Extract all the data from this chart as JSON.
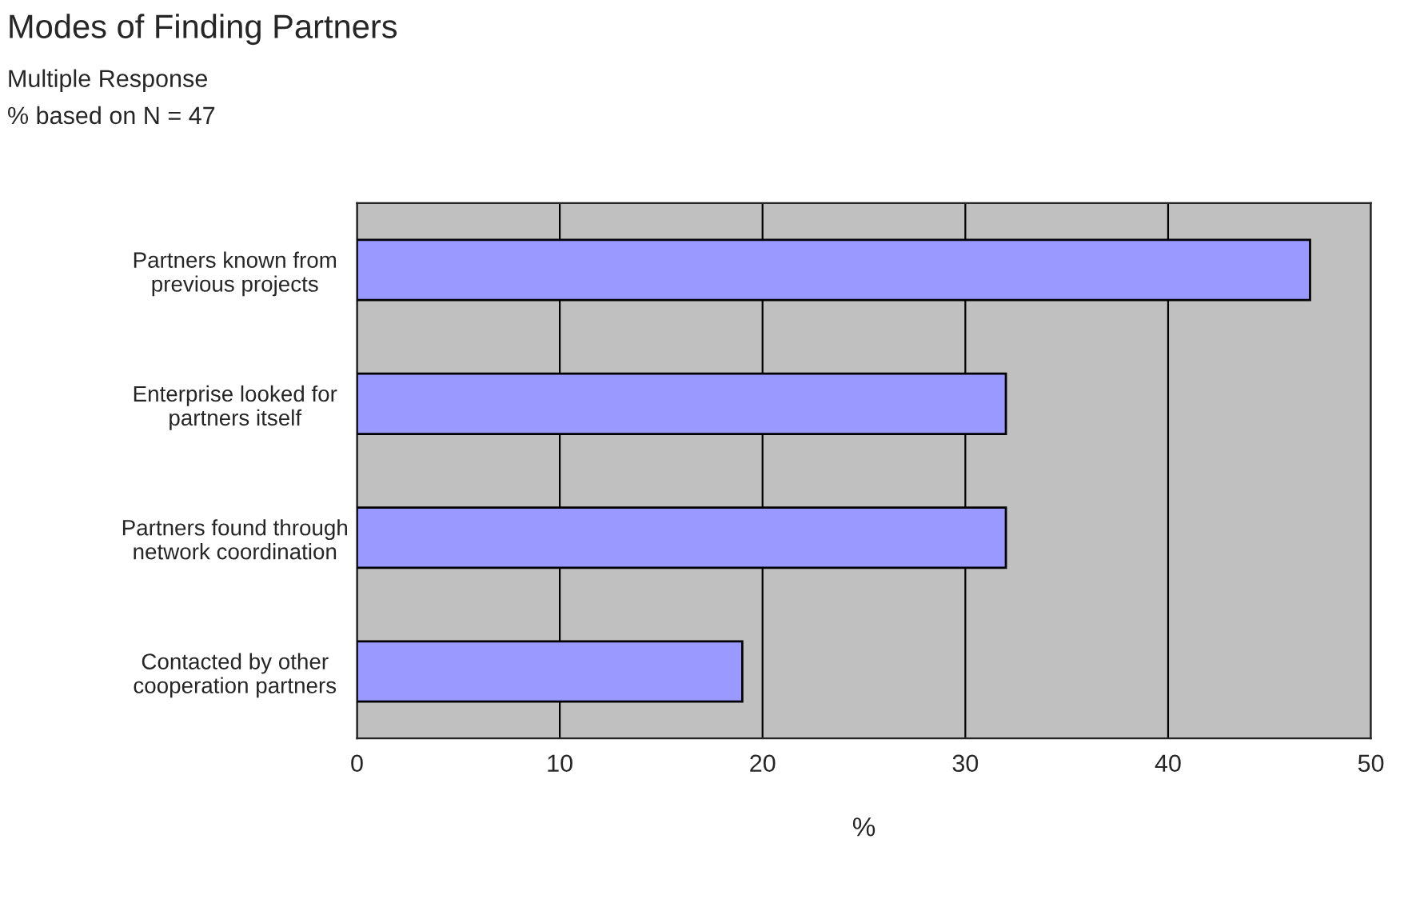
{
  "chart_data": {
    "type": "bar",
    "orientation": "horizontal",
    "title": "Modes of Finding Partners",
    "subtitle": "Multiple Response\n% based on N = 47",
    "xlabel": "%",
    "categories": [
      "Partners known from\nprevious projects",
      "Enterprise looked for\npartners itself",
      "Partners found through\nnetwork coordination",
      "Contacted by other\ncooperation partners"
    ],
    "values": [
      47,
      32,
      32,
      19
    ],
    "color": "#9999ff",
    "xlim": [
      0,
      50
    ],
    "xticks": [
      0,
      10,
      20,
      30,
      40,
      50
    ],
    "grid": "x"
  }
}
